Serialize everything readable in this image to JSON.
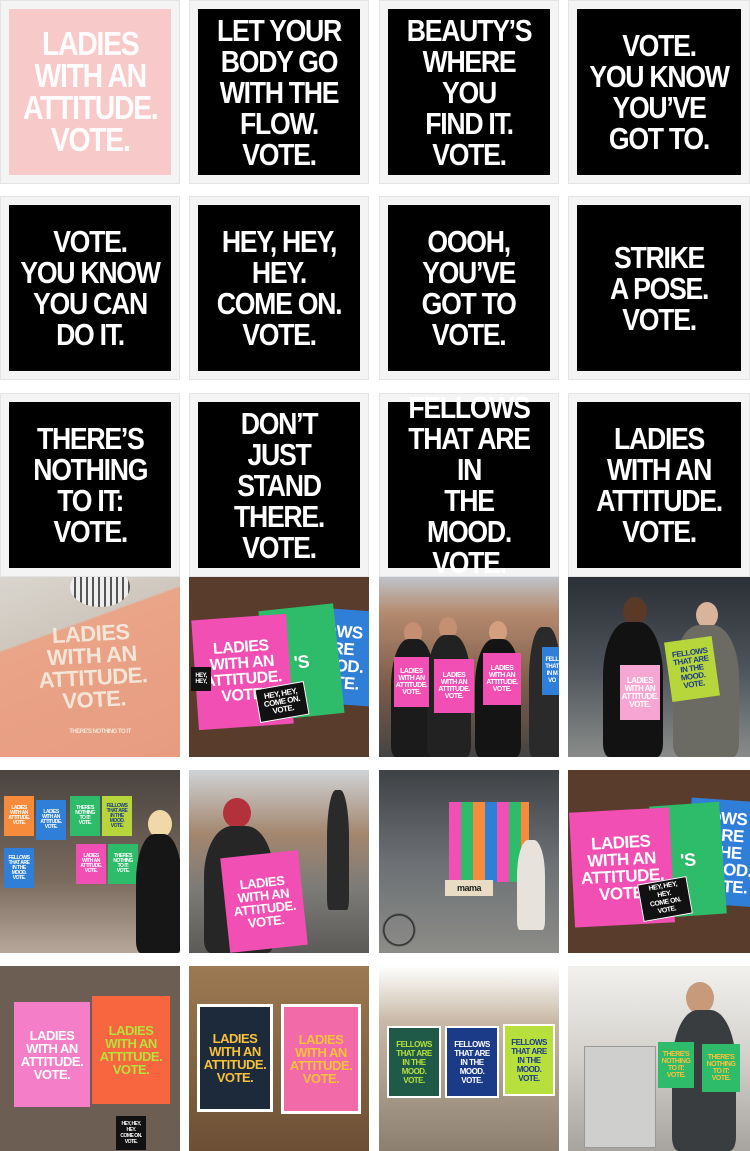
{
  "posters": [
    {
      "text": "LADIES\nWITH AN\nATTITUDE.\nVOTE.",
      "style": "pink"
    },
    {
      "text": "LET YOUR\nBODY GO\nWITH THE\nFLOW. VOTE.",
      "style": "black"
    },
    {
      "text": "BEAUTY’S\nWHERE YOU\nFIND IT.\nVOTE.",
      "style": "black"
    },
    {
      "text": "VOTE.\nYOU KNOW\nYOU’VE\nGOT TO.",
      "style": "black"
    },
    {
      "text": "VOTE.\nYOU KNOW\nYOU CAN\nDO IT.",
      "style": "black"
    },
    {
      "text": "HEY, HEY, HEY.\nCOME ON.\nVOTE.",
      "style": "black"
    },
    {
      "text": "OOOH,\nYOU’VE\nGOT TO\nVOTE.",
      "style": "black"
    },
    {
      "text": "STRIKE\nA POSE.\nVOTE.",
      "style": "black"
    },
    {
      "text": "THERE’S\nNOTHING\nTO IT:\nVOTE.",
      "style": "black"
    },
    {
      "text": "DON’T JUST\nSTAND\nTHERE.\nVOTE.",
      "style": "black"
    },
    {
      "text": "FELLOWS\nTHAT ARE IN\nTHE MOOD.\nVOTE.",
      "style": "black"
    },
    {
      "text": "LADIES\nWITH AN\nATTITUDE.\nVOTE.",
      "style": "black"
    }
  ],
  "photos": {
    "sweater": {
      "text": "LADIES\nWITH AN\nATTITUDE.\nVOTE.",
      "small": "THERE'S NOTHING TO IT"
    },
    "spread1": {
      "pink": "LADIES\nWITH AN\nATTITUDE.\nVOTE.",
      "green": "'S",
      "blue": "LOWS\nARE\nMOOD.\nVOTE.",
      "sticker1": "HEY,\nHEY,",
      "sticker2": "HEY, HEY,\nCOME ON.\nVOTE."
    },
    "group": {
      "s1": "LADIES\nWITH AN\nATTITUDE.\nVOTE.",
      "s2": "LADIES\nWITH AN\nATTITUDE.\nVOTE.",
      "s3": "LADIES\nWITH AN\nATTITUDE.\nVOTE.",
      "s4": "FELL\nTHAT\nIN M\nVO"
    },
    "duo": {
      "pink": "LADIES\nWITH AN\nATTITUDE.\nVOTE.",
      "green": "FELLOWS\nTHAT ARE\nIN THE\nMOOD.\nVOTE."
    },
    "window": {
      "p1": "LADIES\nWITH AN\nATTITUDE.\nVOTE.",
      "p2": "LADIES\nWITH AN\nATTITUDE.\nVOTE.",
      "p3": "THERE'S\nNOTHING\nTO IT:\nVOTE.",
      "p4": "FELLOWS\nTHAT ARE\nIN THE\nMOOD.\nVOTE.",
      "p5": "FELLOWS\nTHAT ARE\nIN THE\nMOOD.\nVOTE.",
      "p6": "LADIES\nWITH AN\nATTITUDE.\nVOTE.",
      "p7": "THERE'S\nNOTHING\nTO IT:\nVOTE."
    },
    "street": {
      "sign": "LADIES\nWITH AN\nATTITUDE.\nVOTE."
    },
    "shop": {
      "sign": "mama"
    },
    "spread2": {
      "pink": "LADIES\nWITH AN\nATTITUDE.\nVOTE.",
      "green": "'S",
      "blue": "OWS\nARE\nTHE\nMOOD.\nVOTE.",
      "sticker": "HEY, HEY,\nHEY.\nCOME ON.\nVOTE."
    },
    "wall1": {
      "pink": "LADIES\nWITH AN\nATTITUDE.\nVOTE.",
      "orange": "LADIES\nWITH AN\nATTITUDE.\nVOTE.",
      "sticker": "HEY, HEY,\nHEY.\nCOME ON.\nVOTE."
    },
    "wall2": {
      "dark": "LADIES\nWITH AN\nATTITUDE.\nVOTE.",
      "pink": "LADIES\nWITH AN\nATTITUDE.\nVOTE."
    },
    "wall3": {
      "p1": "FELLOWS\nTHAT ARE\nIN THE\nMOOD.\nVOTE.",
      "p2": "FELLOWS\nTHAT ARE\nIN THE\nMOOD.\nVOTE.",
      "p3": "FELLOWS\nTHAT ARE\nIN THE\nMOOD.\nVOTE."
    },
    "studio": {
      "p1": "THERE'S\nNOTHING\nTO IT:\nVOTE.",
      "p2": "THERE'S\nNOTHING\nTO IT:\nVOTE."
    }
  }
}
